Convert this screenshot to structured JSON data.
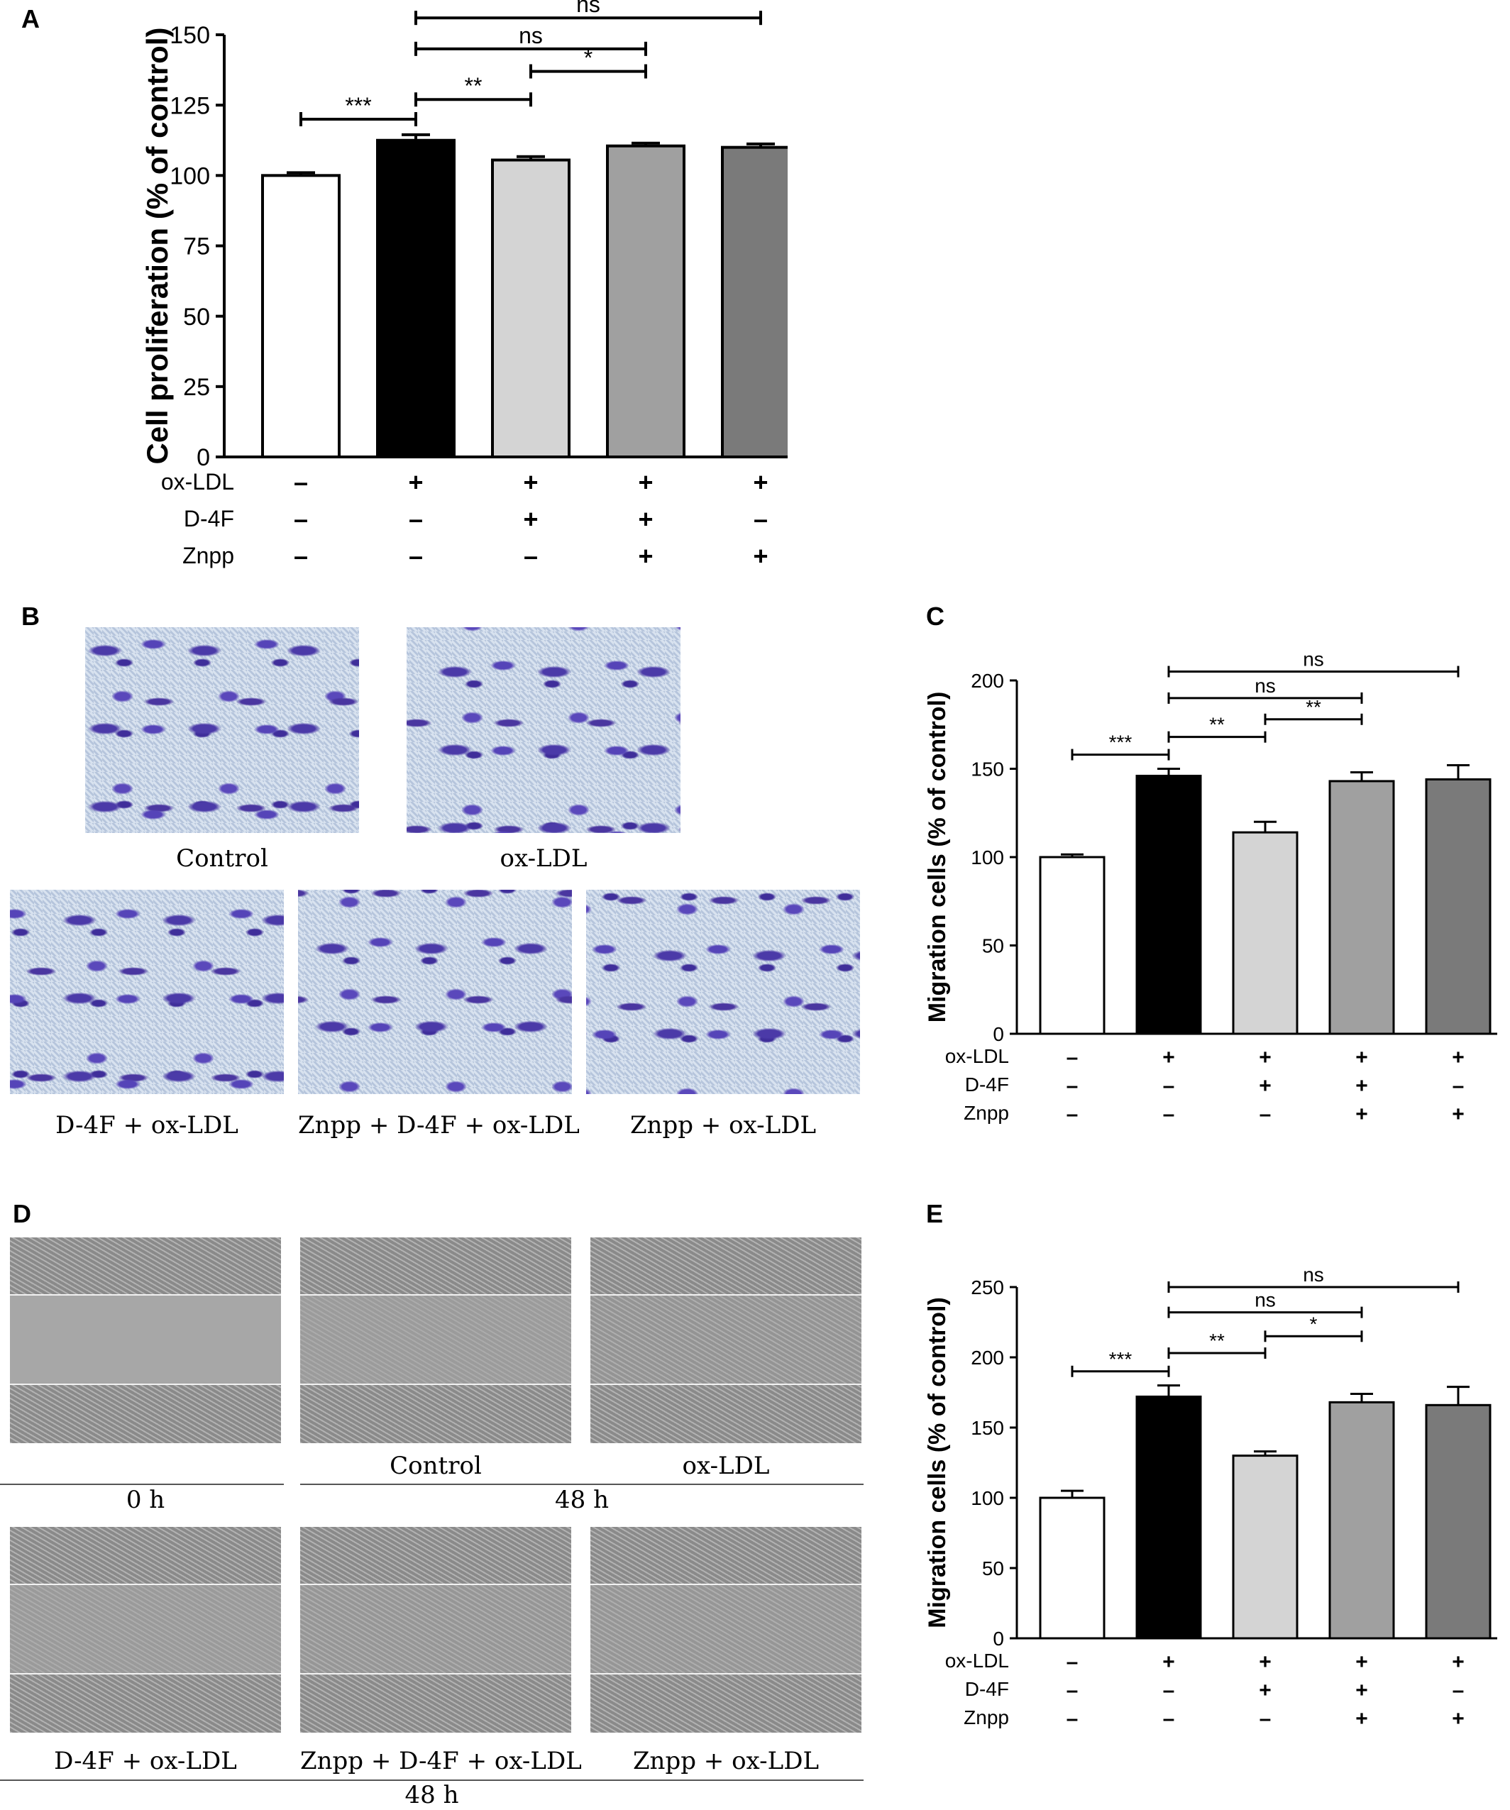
{
  "panels": {
    "A": "A",
    "B": "B",
    "C": "C",
    "D": "D",
    "E": "E"
  },
  "chart_data": [
    {
      "panel": "A",
      "type": "bar",
      "ylabel": "Cell proliferation (% of control)",
      "ylim": [
        0,
        150
      ],
      "yticks": [
        0,
        25,
        50,
        75,
        100,
        125,
        150
      ],
      "values": [
        100,
        112.5,
        105.5,
        110.5,
        110
      ],
      "errors": [
        1,
        2,
        1.2,
        1,
        1.2
      ],
      "colors": [
        "#ffffff",
        "#000000",
        "#d4d4d4",
        "#a0a0a0",
        "#7a7a7a"
      ],
      "conditions": [
        {
          "name": "ox-LDL",
          "signs": [
            "–",
            "+",
            "+",
            "+",
            "+"
          ]
        },
        {
          "name": "D-4F",
          "signs": [
            "–",
            "–",
            "+",
            "+",
            "–"
          ]
        },
        {
          "name": "Znpp",
          "signs": [
            "–",
            "–",
            "–",
            "+",
            "+"
          ]
        }
      ],
      "brackets": [
        {
          "from": 0,
          "to": 1,
          "y": 120,
          "label": "***"
        },
        {
          "from": 1,
          "to": 2,
          "y": 127,
          "label": "**"
        },
        {
          "from": 2,
          "to": 3,
          "y": 137,
          "label": "*"
        },
        {
          "from": 1,
          "to": 3,
          "y": 145,
          "label": "ns"
        },
        {
          "from": 1,
          "to": 4,
          "y": 156,
          "label": "ns"
        }
      ]
    },
    {
      "panel": "C",
      "type": "bar",
      "ylabel": "Migration cells (% of control)",
      "ylim": [
        0,
        200
      ],
      "yticks": [
        0,
        50,
        100,
        150,
        200
      ],
      "values": [
        100,
        146,
        114,
        143,
        144
      ],
      "errors": [
        1.5,
        4,
        6,
        5,
        8
      ],
      "colors": [
        "#ffffff",
        "#000000",
        "#d4d4d4",
        "#a0a0a0",
        "#7a7a7a"
      ],
      "conditions": [
        {
          "name": "ox-LDL",
          "signs": [
            "–",
            "+",
            "+",
            "+",
            "+"
          ]
        },
        {
          "name": "D-4F",
          "signs": [
            "–",
            "–",
            "+",
            "+",
            "–"
          ]
        },
        {
          "name": "Znpp",
          "signs": [
            "–",
            "–",
            "–",
            "+",
            "+"
          ]
        }
      ],
      "brackets": [
        {
          "from": 0,
          "to": 1,
          "y": 158,
          "label": "***"
        },
        {
          "from": 1,
          "to": 2,
          "y": 168,
          "label": "**"
        },
        {
          "from": 2,
          "to": 3,
          "y": 178,
          "label": "**"
        },
        {
          "from": 1,
          "to": 3,
          "y": 190,
          "label": "ns"
        },
        {
          "from": 1,
          "to": 4,
          "y": 205,
          "label": "ns"
        }
      ]
    },
    {
      "panel": "E",
      "type": "bar",
      "ylabel": "Migration cells (% of control)",
      "ylim": [
        0,
        250
      ],
      "yticks": [
        0,
        50,
        100,
        150,
        200,
        250
      ],
      "values": [
        100,
        172,
        130,
        168,
        166
      ],
      "errors": [
        5,
        8,
        3,
        6,
        13
      ],
      "colors": [
        "#ffffff",
        "#000000",
        "#d4d4d4",
        "#a0a0a0",
        "#7a7a7a"
      ],
      "conditions": [
        {
          "name": "ox-LDL",
          "signs": [
            "–",
            "+",
            "+",
            "+",
            "+"
          ]
        },
        {
          "name": "D-4F",
          "signs": [
            "–",
            "–",
            "+",
            "+",
            "–"
          ]
        },
        {
          "name": "Znpp",
          "signs": [
            "–",
            "–",
            "–",
            "+",
            "+"
          ]
        }
      ],
      "brackets": [
        {
          "from": 0,
          "to": 1,
          "y": 190,
          "label": "***"
        },
        {
          "from": 1,
          "to": 2,
          "y": 203,
          "label": "**"
        },
        {
          "from": 2,
          "to": 3,
          "y": 215,
          "label": "*"
        },
        {
          "from": 1,
          "to": 3,
          "y": 232,
          "label": "ns"
        },
        {
          "from": 1,
          "to": 4,
          "y": 250,
          "label": "ns"
        }
      ]
    }
  ],
  "panel_b": {
    "captions": [
      "Control",
      "ox-LDL",
      "D-4F + ox-LDL",
      "Znpp + D-4F + ox-LDL",
      "Znpp + ox-LDL"
    ]
  },
  "panel_d": {
    "row1_captions": [
      "Control",
      "ox-LDL"
    ],
    "row1_time_left": "0 h",
    "row1_time_right": "48 h",
    "row2_captions": [
      "D-4F + ox-LDL",
      "Znpp + D-4F + ox-LDL",
      "Znpp + ox-LDL"
    ],
    "row2_time": "48 h"
  }
}
